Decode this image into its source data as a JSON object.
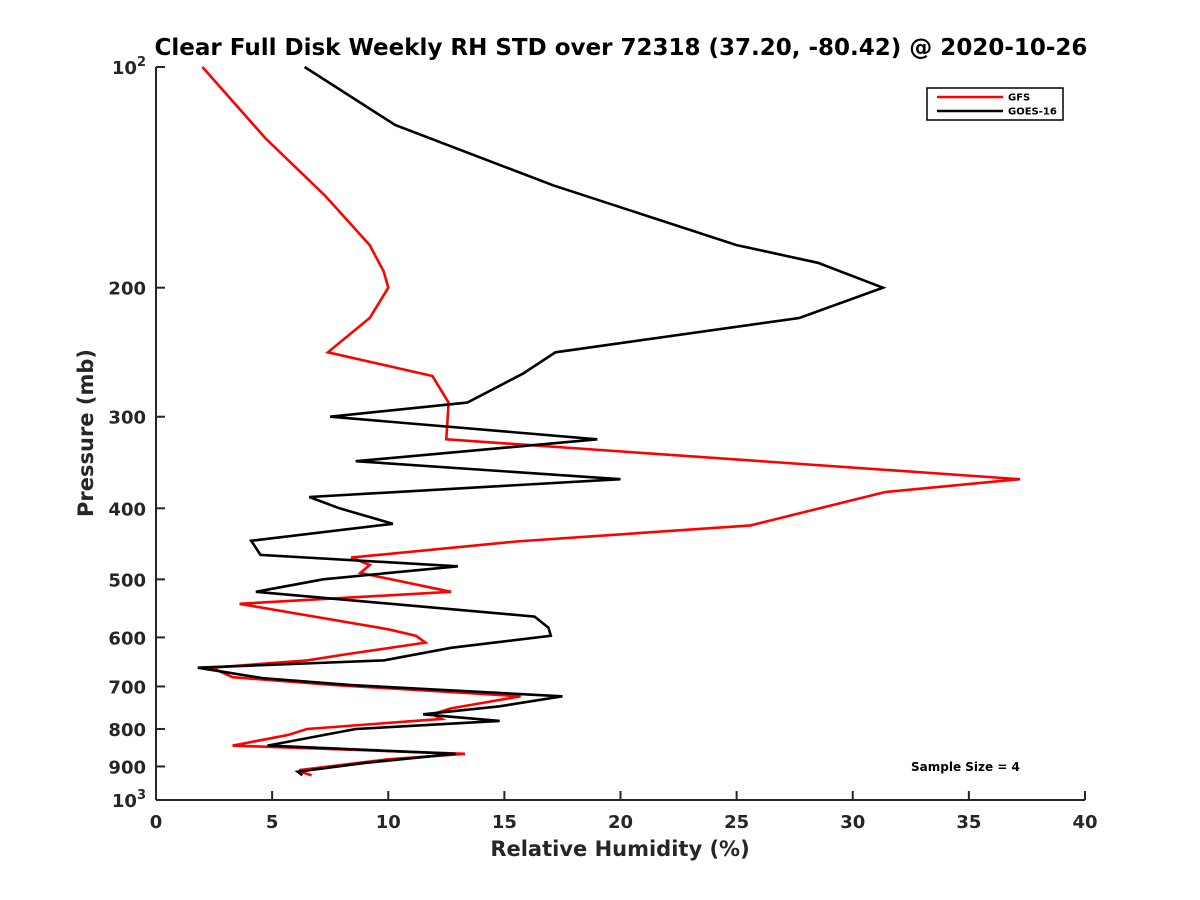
{
  "chart_data": {
    "type": "line",
    "title": "Clear Full Disk Weekly RH STD over 72318 (37.20, -80.42) @ 2020-10-26",
    "xlabel": "Relative Humidity (%)",
    "ylabel": "Pressure (mb)",
    "xlim": [
      0,
      40
    ],
    "ylim": [
      1000,
      100
    ],
    "yscale": "log",
    "y_reversed": true,
    "grid": false,
    "legend_position": "top-right",
    "x_ticks": [
      0,
      5,
      10,
      15,
      20,
      25,
      30,
      35,
      40
    ],
    "x_tick_labels": [
      "0",
      "5",
      "10",
      "15",
      "20",
      "25",
      "30",
      "35",
      "40"
    ],
    "y_ticks": [
      100,
      200,
      300,
      400,
      500,
      600,
      700,
      800,
      900,
      1000
    ],
    "y_tick_labels": [
      {
        "base": "10",
        "exp": "2"
      },
      {
        "base": "200",
        "exp": ""
      },
      {
        "base": "300",
        "exp": ""
      },
      {
        "base": "400",
        "exp": ""
      },
      {
        "base": "500",
        "exp": ""
      },
      {
        "base": "600",
        "exp": ""
      },
      {
        "base": "700",
        "exp": ""
      },
      {
        "base": "800",
        "exp": ""
      },
      {
        "base": "900",
        "exp": ""
      },
      {
        "base": "10",
        "exp": "3"
      }
    ],
    "annotation": "Sample Size = 4",
    "series": [
      {
        "name": "GFS",
        "color": "#ff0000",
        "points": [
          [
            2.0,
            100
          ],
          [
            4.7,
            125
          ],
          [
            7.3,
            150
          ],
          [
            9.2,
            175
          ],
          [
            9.8,
            190
          ],
          [
            10.0,
            200
          ],
          [
            9.2,
            220
          ],
          [
            7.4,
            245
          ],
          [
            11.9,
            264
          ],
          [
            12.6,
            287
          ],
          [
            12.5,
            322
          ],
          [
            37.2,
            365
          ],
          [
            31.4,
            380
          ],
          [
            25.6,
            422
          ],
          [
            15.5,
            444
          ],
          [
            8.4,
            467
          ],
          [
            9.2,
            478
          ],
          [
            8.8,
            490
          ],
          [
            12.7,
            520
          ],
          [
            3.6,
            540
          ],
          [
            10.0,
            585
          ],
          [
            11.2,
            597
          ],
          [
            11.6,
            610
          ],
          [
            8.3,
            632
          ],
          [
            6.5,
            645
          ],
          [
            2.4,
            660
          ],
          [
            3.3,
            680
          ],
          [
            7.7,
            697
          ],
          [
            15.7,
            722
          ],
          [
            12.7,
            750
          ],
          [
            11.9,
            764
          ],
          [
            12.3,
            775
          ],
          [
            6.5,
            800
          ],
          [
            5.7,
            815
          ],
          [
            3.3,
            843
          ],
          [
            13.3,
            865
          ],
          [
            10.0,
            880
          ],
          [
            6.2,
            910
          ],
          [
            6.2,
            915
          ],
          [
            6.7,
            925
          ]
        ]
      },
      {
        "name": "GOES-16",
        "color": "#000000",
        "points": [
          [
            6.4,
            100
          ],
          [
            10.3,
            120
          ],
          [
            17.1,
            145
          ],
          [
            25.0,
            175
          ],
          [
            28.5,
            185
          ],
          [
            31.3,
            200
          ],
          [
            27.7,
            220
          ],
          [
            17.2,
            245
          ],
          [
            15.8,
            262
          ],
          [
            13.4,
            287
          ],
          [
            7.5,
            300
          ],
          [
            19.0,
            322
          ],
          [
            8.6,
            345
          ],
          [
            20.0,
            365
          ],
          [
            6.6,
            386
          ],
          [
            7.9,
            400
          ],
          [
            10.2,
            420
          ],
          [
            4.1,
            443
          ],
          [
            4.5,
            463
          ],
          [
            13.0,
            480
          ],
          [
            7.2,
            500
          ],
          [
            4.3,
            520
          ],
          [
            16.3,
            562
          ],
          [
            16.9,
            582
          ],
          [
            17.0,
            597
          ],
          [
            12.7,
            620
          ],
          [
            9.8,
            645
          ],
          [
            1.8,
            660
          ],
          [
            4.6,
            682
          ],
          [
            8.4,
            697
          ],
          [
            17.5,
            722
          ],
          [
            14.8,
            745
          ],
          [
            11.5,
            764
          ],
          [
            14.8,
            780
          ],
          [
            8.6,
            800
          ],
          [
            4.8,
            843
          ],
          [
            12.9,
            865
          ],
          [
            9.0,
            890
          ],
          [
            6.1,
            915
          ],
          [
            6.3,
            925
          ]
        ]
      }
    ]
  }
}
